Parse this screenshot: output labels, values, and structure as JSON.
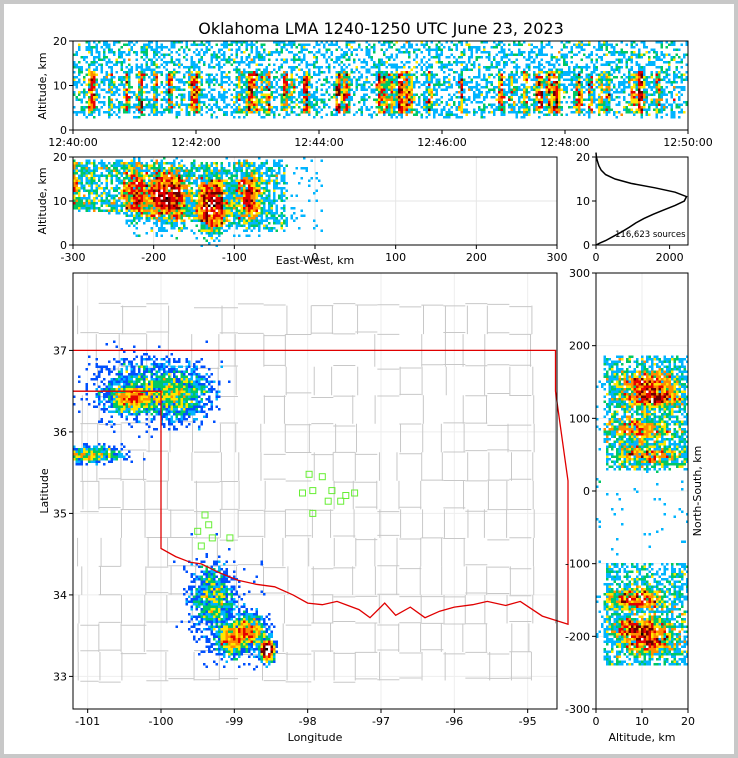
{
  "chart_data": {
    "type": "heatmap",
    "title": "Oklahoma LMA 1240-1250 UTC June 23, 2023",
    "colormap": [
      "#3b00b8",
      "#0050ff",
      "#00b4ff",
      "#00c864",
      "#ffe600",
      "#ff8c00",
      "#e60000",
      "#6a0000",
      "#ffffff"
    ],
    "time_height": {
      "ylabel": "Altitude, km",
      "ylim": [
        0,
        20
      ],
      "yticks": [
        "0",
        "10",
        "20"
      ],
      "xlim": [
        "12:40:00",
        "12:50:00"
      ],
      "xticks": [
        "12:40:00",
        "12:42:00",
        "12:44:00",
        "12:46:00",
        "12:48:00",
        "12:50:00"
      ]
    },
    "ew_height": {
      "xlabel": "East-West, km",
      "ylabel": "Altitude, km",
      "xlim": [
        -300,
        300
      ],
      "ylim": [
        0,
        20
      ],
      "xticks": [
        "-300",
        "-200",
        "-100",
        "0",
        "100",
        "200",
        "300"
      ],
      "yticks": [
        "0",
        "10",
        "20"
      ],
      "cores": [
        {
          "x": -222,
          "alt": 12,
          "strength": 0.9
        },
        {
          "x": -192,
          "alt": 11,
          "strength": 1.0
        },
        {
          "x": -172,
          "alt": 11,
          "strength": 1.0
        },
        {
          "x": -133,
          "alt": 9,
          "strength": 0.95
        },
        {
          "x": -120,
          "alt": 9,
          "strength": 0.8
        },
        {
          "x": -82,
          "alt": 11,
          "strength": 0.9
        }
      ]
    },
    "altitude_histogram": {
      "xlim": [
        0,
        2500
      ],
      "ylim": [
        0,
        20
      ],
      "xticks": [
        "0",
        "2000"
      ],
      "yticks": [
        "0",
        "10",
        "20"
      ],
      "annotation": "116,623 sources",
      "profile": [
        [
          0,
          0
        ],
        [
          0.5,
          120
        ],
        [
          1,
          260
        ],
        [
          2,
          480
        ],
        [
          3,
          700
        ],
        [
          4,
          900
        ],
        [
          5,
          1080
        ],
        [
          6,
          1300
        ],
        [
          7,
          1560
        ],
        [
          8,
          1850
        ],
        [
          9,
          2150
        ],
        [
          10,
          2400
        ],
        [
          11,
          2460
        ],
        [
          12,
          2150
        ],
        [
          13,
          1600
        ],
        [
          14,
          950
        ],
        [
          15,
          520
        ],
        [
          16,
          260
        ],
        [
          17,
          140
        ],
        [
          18,
          80
        ],
        [
          19,
          40
        ],
        [
          20,
          10
        ],
        [
          21,
          0
        ]
      ]
    },
    "map": {
      "xlabel": "Longitude",
      "ylabel": "Latitude",
      "xlim": [
        -101.2,
        -94.6
      ],
      "ylim": [
        32.6,
        37.95
      ],
      "xticks": [
        "-101",
        "-100",
        "-99",
        "-98",
        "-97",
        "-96",
        "-95"
      ],
      "yticks": [
        "33",
        "34",
        "35",
        "36",
        "37"
      ],
      "clusters": [
        {
          "lon": -100.15,
          "lat": 36.55,
          "slon": 0.4,
          "slat": 0.18,
          "strength": 1.0
        },
        {
          "lon": -100.4,
          "lat": 36.4,
          "slon": 0.15,
          "slat": 0.08,
          "strength": 0.9
        },
        {
          "lon": -99.8,
          "lat": 36.45,
          "slon": 0.22,
          "slat": 0.15,
          "strength": 0.95
        },
        {
          "lon": -101.0,
          "lat": 35.72,
          "slon": 0.25,
          "slat": 0.05,
          "strength": 0.6
        },
        {
          "lon": -99.3,
          "lat": 33.95,
          "slon": 0.15,
          "slat": 0.22,
          "strength": 1.0
        },
        {
          "lon": -98.8,
          "lat": 33.55,
          "slon": 0.12,
          "slat": 0.1,
          "strength": 0.95
        },
        {
          "lon": -99.05,
          "lat": 33.45,
          "slon": 0.1,
          "slat": 0.1,
          "strength": 0.7
        },
        {
          "lon": -98.55,
          "lat": 33.32,
          "slon": 0.05,
          "slat": 0.06,
          "strength": 0.8
        }
      ],
      "stations": [
        [
          -97.98,
          35.48
        ],
        [
          -97.8,
          35.45
        ],
        [
          -97.93,
          35.28
        ],
        [
          -98.07,
          35.25
        ],
        [
          -97.67,
          35.28
        ],
        [
          -97.55,
          35.15
        ],
        [
          -97.72,
          35.15
        ],
        [
          -97.48,
          35.22
        ],
        [
          -97.36,
          35.25
        ],
        [
          -97.93,
          35.0
        ],
        [
          -99.4,
          34.98
        ],
        [
          -99.35,
          34.86
        ],
        [
          -99.5,
          34.78
        ],
        [
          -99.3,
          34.7
        ],
        [
          -99.06,
          34.7
        ],
        [
          -99.45,
          34.6
        ]
      ],
      "state_border_color": "#e00000"
    },
    "ns_height": {
      "xlabel": "Altitude, km",
      "ylabel": "North-South, km",
      "xlim": [
        0,
        20
      ],
      "ylim": [
        -300,
        300
      ],
      "xticks": [
        "0",
        "10",
        "20"
      ],
      "yticks": [
        "300",
        "200",
        "100",
        "0",
        "-100",
        "-200",
        "-300"
      ],
      "cores": [
        {
          "ns": 150,
          "alt": 11,
          "strength": 0.9
        },
        {
          "ns": 128,
          "alt": 12,
          "strength": 1.0
        },
        {
          "ns": 85,
          "alt": 9,
          "strength": 0.6
        },
        {
          "ns": 50,
          "alt": 11,
          "strength": 0.6
        },
        {
          "ns": -150,
          "alt": 9,
          "strength": 0.9
        },
        {
          "ns": -190,
          "alt": 10,
          "strength": 1.0
        },
        {
          "ns": -210,
          "alt": 11,
          "strength": 0.8
        }
      ]
    }
  }
}
